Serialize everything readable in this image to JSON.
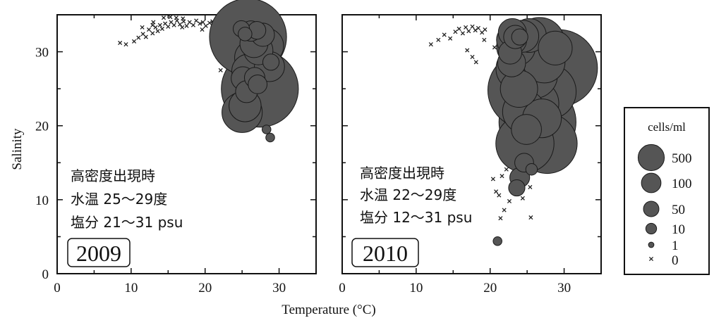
{
  "chart_data": [
    {
      "type": "scatter",
      "panel": "2009",
      "title": "",
      "xlabel": "Temperature (°C)",
      "ylabel": "Salinity",
      "xlim": [
        0,
        35
      ],
      "ylim": [
        0,
        35
      ],
      "xticks": [
        "0",
        "10",
        "20",
        "30"
      ],
      "yticks": [
        "0",
        "10",
        "20",
        "30"
      ],
      "year_label": "2009",
      "annotation_lines": [
        "高密度出現時",
        "水温  25〜29度",
        "塩分   21〜31 psu"
      ],
      "zero_points": [
        [
          8.5,
          31.2
        ],
        [
          9.3,
          31.0
        ],
        [
          10.4,
          31.4
        ],
        [
          11.0,
          31.9
        ],
        [
          11.6,
          32.4
        ],
        [
          12.0,
          32.0
        ],
        [
          12.4,
          33.0
        ],
        [
          12.9,
          32.5
        ],
        [
          13.3,
          33.3
        ],
        [
          13.6,
          32.8
        ],
        [
          13.9,
          33.6
        ],
        [
          14.2,
          33.1
        ],
        [
          14.6,
          33.8
        ],
        [
          15.0,
          33.4
        ],
        [
          15.4,
          34.0
        ],
        [
          15.8,
          33.6
        ],
        [
          16.2,
          34.2
        ],
        [
          16.6,
          33.7
        ],
        [
          17.1,
          34.1
        ],
        [
          17.5,
          33.5
        ],
        [
          17.9,
          34.0
        ],
        [
          18.4,
          33.6
        ],
        [
          18.8,
          34.2
        ],
        [
          19.3,
          33.8
        ],
        [
          19.7,
          34.0
        ],
        [
          20.1,
          33.5
        ],
        [
          20.6,
          33.9
        ],
        [
          21.0,
          34.1
        ],
        [
          21.4,
          33.7
        ],
        [
          21.9,
          33.9
        ],
        [
          22.3,
          34.0
        ],
        [
          22.8,
          33.6
        ],
        [
          23.2,
          33.9
        ],
        [
          23.6,
          34.1
        ],
        [
          24.0,
          33.7
        ],
        [
          14.4,
          34.6
        ],
        [
          15.3,
          34.7
        ],
        [
          16.1,
          34.6
        ],
        [
          17.0,
          34.5
        ],
        [
          13.0,
          34.0
        ],
        [
          11.5,
          33.3
        ],
        [
          22.1,
          27.5
        ],
        [
          29.8,
          32.9
        ],
        [
          27.5,
          33.9
        ],
        [
          29.2,
          33.6
        ],
        [
          12.9,
          33.6
        ],
        [
          16.9,
          33.3
        ],
        [
          19.6,
          33.0
        ]
      ],
      "density_points": [
        {
          "t": 27.4,
          "s": 25.0,
          "cells": 500
        },
        {
          "t": 25.8,
          "s": 32.0,
          "cells": 500
        },
        {
          "t": 25.0,
          "s": 21.8,
          "cells": 130
        },
        {
          "t": 28.2,
          "s": 30.8,
          "cells": 100
        },
        {
          "t": 26.4,
          "s": 29.2,
          "cells": 100
        },
        {
          "t": 25.9,
          "s": 27.4,
          "cells": 90
        },
        {
          "t": 28.7,
          "s": 28.0,
          "cells": 70
        },
        {
          "t": 25.4,
          "s": 22.7,
          "cells": 80
        },
        {
          "t": 27.2,
          "s": 30.2,
          "cells": 65
        },
        {
          "t": 26.6,
          "s": 31.1,
          "cells": 60
        },
        {
          "t": 25.1,
          "s": 26.4,
          "cells": 40
        },
        {
          "t": 27.8,
          "s": 32.3,
          "cells": 40
        },
        {
          "t": 26.2,
          "s": 32.8,
          "cells": 30
        },
        {
          "t": 25.6,
          "s": 24.6,
          "cells": 35
        },
        {
          "t": 27.0,
          "s": 32.9,
          "cells": 22
        },
        {
          "t": 24.9,
          "s": 33.1,
          "cells": 18
        },
        {
          "t": 26.7,
          "s": 26.5,
          "cells": 30
        },
        {
          "t": 28.9,
          "s": 28.6,
          "cells": 18
        },
        {
          "t": 27.1,
          "s": 25.6,
          "cells": 25
        },
        {
          "t": 25.4,
          "s": 32.4,
          "cells": 12
        },
        {
          "t": 28.3,
          "s": 19.5,
          "cells": 4
        },
        {
          "t": 28.8,
          "s": 18.4,
          "cells": 4
        }
      ]
    },
    {
      "type": "scatter",
      "panel": "2010",
      "title": "",
      "xlabel": "Temperature (°C)",
      "ylabel": "",
      "xlim": [
        0,
        35
      ],
      "ylim": [
        0,
        35
      ],
      "xticks": [
        "0",
        "10",
        "20",
        "30"
      ],
      "yticks": [],
      "year_label": "2010",
      "annotation_lines": [
        "高密度出現時",
        "水温  22〜29度",
        "塩分   12〜31 psu"
      ],
      "zero_points": [
        [
          12.0,
          31.0
        ],
        [
          13.0,
          31.6
        ],
        [
          13.8,
          32.3
        ],
        [
          14.6,
          31.8
        ],
        [
          15.3,
          32.7
        ],
        [
          15.8,
          33.1
        ],
        [
          16.3,
          32.5
        ],
        [
          16.7,
          33.3
        ],
        [
          17.1,
          32.8
        ],
        [
          17.6,
          33.4
        ],
        [
          18.0,
          32.9
        ],
        [
          18.4,
          33.2
        ],
        [
          18.9,
          32.6
        ],
        [
          19.3,
          33.0
        ],
        [
          16.9,
          30.2
        ],
        [
          17.6,
          29.3
        ],
        [
          18.1,
          28.6
        ],
        [
          19.2,
          31.6
        ],
        [
          20.6,
          30.6
        ],
        [
          20.4,
          12.8
        ],
        [
          21.2,
          10.6
        ],
        [
          21.9,
          8.6
        ],
        [
          22.6,
          9.8
        ],
        [
          23.0,
          12.3
        ],
        [
          23.6,
          11.4
        ],
        [
          24.4,
          10.2
        ],
        [
          24.9,
          12.6
        ],
        [
          25.4,
          11.7
        ],
        [
          21.4,
          7.5
        ],
        [
          25.5,
          7.6
        ],
        [
          25.9,
          14.8
        ],
        [
          22.2,
          14.1
        ],
        [
          22.9,
          15.6
        ],
        [
          24.2,
          14.9
        ],
        [
          21.6,
          13.2
        ],
        [
          20.8,
          11.1
        ]
      ],
      "density_points": [
        {
          "t": 26.4,
          "s": 20.5,
          "cells": 500
        },
        {
          "t": 29.3,
          "s": 27.8,
          "cells": 500
        },
        {
          "t": 24.9,
          "s": 24.8,
          "cells": 500
        },
        {
          "t": 27.7,
          "s": 17.6,
          "cells": 300
        },
        {
          "t": 24.7,
          "s": 17.6,
          "cells": 280
        },
        {
          "t": 27.9,
          "s": 24.6,
          "cells": 250
        },
        {
          "t": 25.4,
          "s": 29.5,
          "cells": 250
        },
        {
          "t": 26.7,
          "s": 31.3,
          "cells": 200
        },
        {
          "t": 23.8,
          "s": 27.7,
          "cells": 160
        },
        {
          "t": 26.0,
          "s": 26.8,
          "cells": 170
        },
        {
          "t": 24.6,
          "s": 21.9,
          "cells": 150
        },
        {
          "t": 27.3,
          "s": 28.6,
          "cells": 140
        },
        {
          "t": 23.5,
          "s": 30.7,
          "cells": 120
        },
        {
          "t": 26.1,
          "s": 23.0,
          "cells": 180
        },
        {
          "t": 25.3,
          "s": 32.2,
          "cells": 90
        },
        {
          "t": 24.4,
          "s": 32.1,
          "cells": 80
        },
        {
          "t": 22.9,
          "s": 31.6,
          "cells": 70
        },
        {
          "t": 23.9,
          "s": 25.0,
          "cells": 110
        },
        {
          "t": 27.0,
          "s": 21.0,
          "cells": 120
        },
        {
          "t": 23.0,
          "s": 32.6,
          "cells": 60
        },
        {
          "t": 28.8,
          "s": 30.5,
          "cells": 90
        },
        {
          "t": 22.9,
          "s": 28.5,
          "cells": 60
        },
        {
          "t": 22.7,
          "s": 29.9,
          "cells": 40
        },
        {
          "t": 24.9,
          "s": 19.5,
          "cells": 70
        },
        {
          "t": 24.6,
          "s": 15.0,
          "cells": 25
        },
        {
          "t": 24.0,
          "s": 13.0,
          "cells": 28
        },
        {
          "t": 23.6,
          "s": 11.6,
          "cells": 18
        },
        {
          "t": 25.6,
          "s": 14.1,
          "cells": 8
        },
        {
          "t": 23.4,
          "s": 32.0,
          "cells": 40
        },
        {
          "t": 24.0,
          "s": 32.0,
          "cells": 18
        },
        {
          "t": 21.0,
          "s": 4.4,
          "cells": 4
        }
      ]
    }
  ],
  "legend": {
    "title": "cells/ml",
    "placement": "right",
    "items": [
      {
        "label": "500",
        "cells": 500
      },
      {
        "label": "100",
        "cells": 100
      },
      {
        "label": "50",
        "cells": 50
      },
      {
        "label": "10",
        "cells": 10
      },
      {
        "label": "1",
        "cells": 1
      },
      {
        "label": "0",
        "cells": 0
      }
    ]
  },
  "colors": {
    "bubble_fill": "#555555",
    "bubble_stroke": "#1a1a1a",
    "axis": "#111111",
    "zero_marker": "#222222"
  }
}
